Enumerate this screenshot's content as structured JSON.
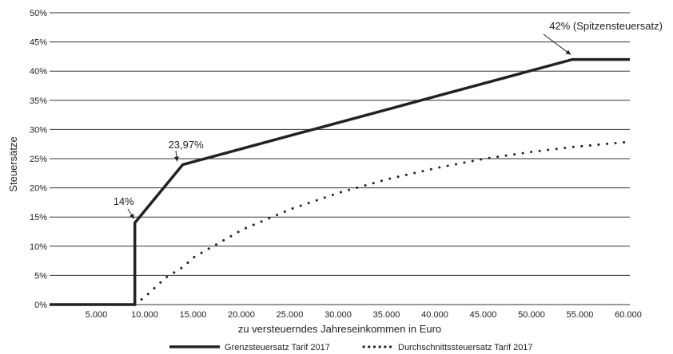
{
  "chart_data": {
    "type": "line",
    "xlabel": "zu versteuerndes Jahreseinkommen in Euro",
    "ylabel": "Steuersätze",
    "xlim": [
      0,
      60000
    ],
    "ylim": [
      0,
      50
    ],
    "x_ticks": [
      {
        "value": 5000,
        "label": "5.000"
      },
      {
        "value": 10000,
        "label": "10.000"
      },
      {
        "value": 15000,
        "label": "15.000"
      },
      {
        "value": 20000,
        "label": "20.000"
      },
      {
        "value": 25000,
        "label": "25.000"
      },
      {
        "value": 30000,
        "label": "30.000"
      },
      {
        "value": 35000,
        "label": "35.000"
      },
      {
        "value": 40000,
        "label": "40.000"
      },
      {
        "value": 45000,
        "label": "45.000"
      },
      {
        "value": 50000,
        "label": "50.000"
      },
      {
        "value": 55000,
        "label": "55.000"
      },
      {
        "value": 60000,
        "label": "60.000"
      }
    ],
    "y_ticks": [
      {
        "value": 0,
        "label": "0%"
      },
      {
        "value": 5,
        "label": "5%"
      },
      {
        "value": 10,
        "label": "10%"
      },
      {
        "value": 15,
        "label": "15%"
      },
      {
        "value": 20,
        "label": "20%"
      },
      {
        "value": 25,
        "label": "25%"
      },
      {
        "value": 30,
        "label": "30%"
      },
      {
        "value": 35,
        "label": "35%"
      },
      {
        "value": 40,
        "label": "40%"
      },
      {
        "value": 45,
        "label": "45%"
      },
      {
        "value": 50,
        "label": "50%"
      }
    ],
    "grid": "horizontal",
    "legend_position": "bottom",
    "series": [
      {
        "name": "Grenzsteuersatz Tarif 2017",
        "style": "solid",
        "color": "#222222",
        "points": [
          [
            0,
            0
          ],
          [
            8820,
            0
          ],
          [
            8820,
            14
          ],
          [
            13770,
            23.97
          ],
          [
            54058,
            42
          ],
          [
            60000,
            42
          ]
        ]
      },
      {
        "name": "Durchschnittssteuersatz Tarif 2017",
        "style": "dotted",
        "color": "#222222",
        "points": [
          [
            8820,
            0
          ],
          [
            10000,
            1.5
          ],
          [
            12000,
            4.6
          ],
          [
            13770,
            6.4
          ],
          [
            15000,
            8.2
          ],
          [
            20000,
            12.9
          ],
          [
            25000,
            16.4
          ],
          [
            30000,
            19.2
          ],
          [
            35000,
            21.5
          ],
          [
            40000,
            23.4
          ],
          [
            45000,
            25.0
          ],
          [
            50000,
            26.2
          ],
          [
            54058,
            27.0
          ],
          [
            60000,
            27.9
          ]
        ]
      }
    ],
    "annotations": [
      {
        "text": "14%",
        "x": 8820,
        "y": 14
      },
      {
        "text": "23,97%",
        "x": 13770,
        "y": 23.97
      },
      {
        "text": "42% (Spitzensteuersatz)",
        "x": 54058,
        "y": 42
      }
    ]
  }
}
